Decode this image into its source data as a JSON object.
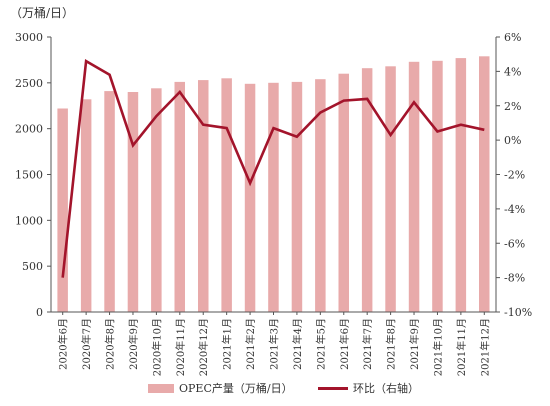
{
  "unit_label": "（万桶/日）",
  "colors": {
    "bar": "#e8aaaa",
    "line": "#a3142b",
    "axis": "#555555"
  },
  "legend": {
    "bar_label": "OPEC产量（万桶/日）",
    "line_label": "环比（右轴）"
  },
  "chart_data": {
    "type": "bar+line",
    "categories": [
      "2020年6月",
      "2020年7月",
      "2020年8月",
      "2020年9月",
      "2020年10月",
      "2020年11月",
      "2020年12月",
      "2021年1月",
      "2021年2月",
      "2021年3月",
      "2021年4月",
      "2021年5月",
      "2021年6月",
      "2021年7月",
      "2021年8月",
      "2021年9月",
      "2021年10月",
      "2021年11月",
      "2021年12月"
    ],
    "series": [
      {
        "name": "OPEC产量（万桶/日）",
        "kind": "bar",
        "axis": "left",
        "values": [
          2220,
          2320,
          2410,
          2400,
          2440,
          2510,
          2530,
          2550,
          2490,
          2500,
          2510,
          2540,
          2600,
          2660,
          2680,
          2730,
          2740,
          2770,
          2790
        ]
      },
      {
        "name": "环比（右轴）",
        "kind": "line",
        "axis": "right",
        "values": [
          -8.0,
          4.6,
          3.8,
          -0.3,
          1.4,
          2.8,
          0.9,
          0.7,
          -2.5,
          0.7,
          0.2,
          1.6,
          2.3,
          2.4,
          0.3,
          2.2,
          0.5,
          0.9,
          0.6
        ]
      }
    ],
    "left_axis": {
      "min": 0,
      "max": 3000,
      "ticks": [
        0,
        500,
        1000,
        1500,
        2000,
        2500,
        3000
      ]
    },
    "right_axis": {
      "min": -10,
      "max": 6,
      "ticks": [
        "-10%",
        "-8%",
        "-6%",
        "-4%",
        "-2%",
        "0%",
        "2%",
        "4%",
        "6%"
      ]
    },
    "grid": false,
    "legend_position": "bottom"
  }
}
